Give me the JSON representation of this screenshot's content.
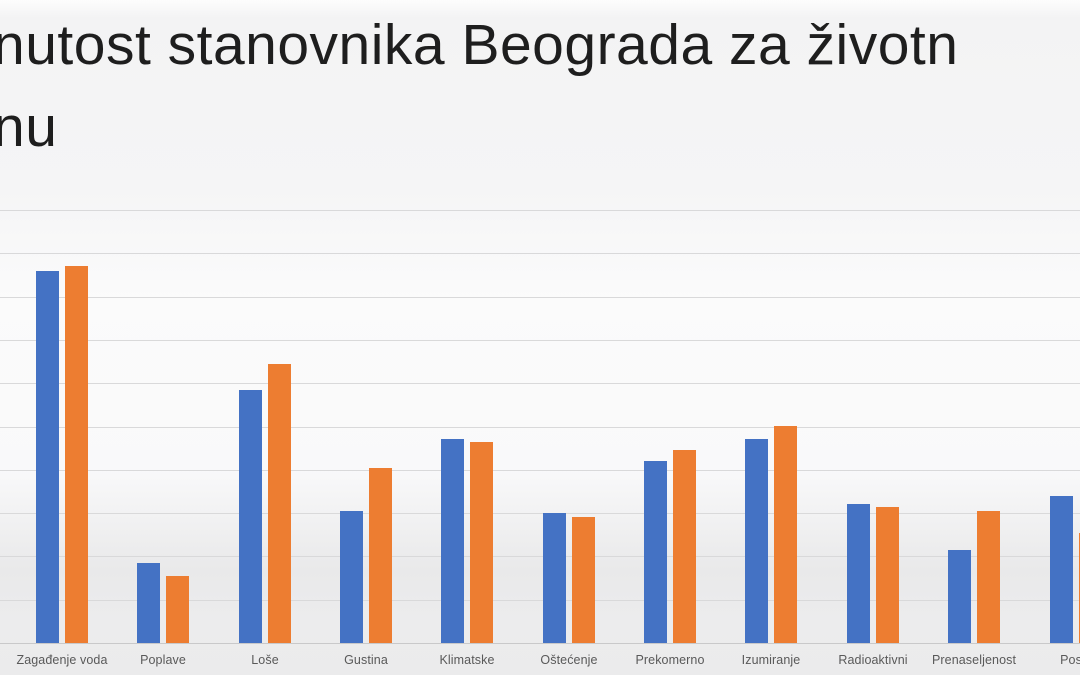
{
  "title": {
    "line1": "nutost stanovnika Beograda za životn",
    "line2": "nu"
  },
  "chart_data": {
    "type": "bar",
    "title": "nutost stanovnika Beograda za životnu (cropped at image edges)",
    "categories": [
      "Zagađenje voda",
      "Poplave",
      "Loše",
      "Gustina",
      "Klimatske",
      "Oštećenje",
      "Prekomerno",
      "Izumiranje",
      "Radioaktivni",
      "Prenaseljenost",
      "Posle"
    ],
    "series": [
      {
        "name": "blue",
        "color": "#4472C4",
        "values": [
          86,
          18.5,
          58.5,
          30.5,
          47,
          30,
          42,
          47,
          32,
          21.5,
          34
        ]
      },
      {
        "name": "orange",
        "color": "#ED7D31",
        "values": [
          87,
          15.5,
          64.5,
          40.5,
          46.5,
          29,
          44.5,
          50,
          31.5,
          30.5,
          25.5
        ]
      }
    ],
    "xlabel": "",
    "ylabel": "",
    "ylim": [
      0,
      100
    ],
    "gridlines": {
      "visible": true,
      "count": 11,
      "interval": 10,
      "color": "#d9d9da"
    },
    "legend_position": "none",
    "axis_tick_labels_visible": false,
    "category_label_color": "#595959"
  }
}
